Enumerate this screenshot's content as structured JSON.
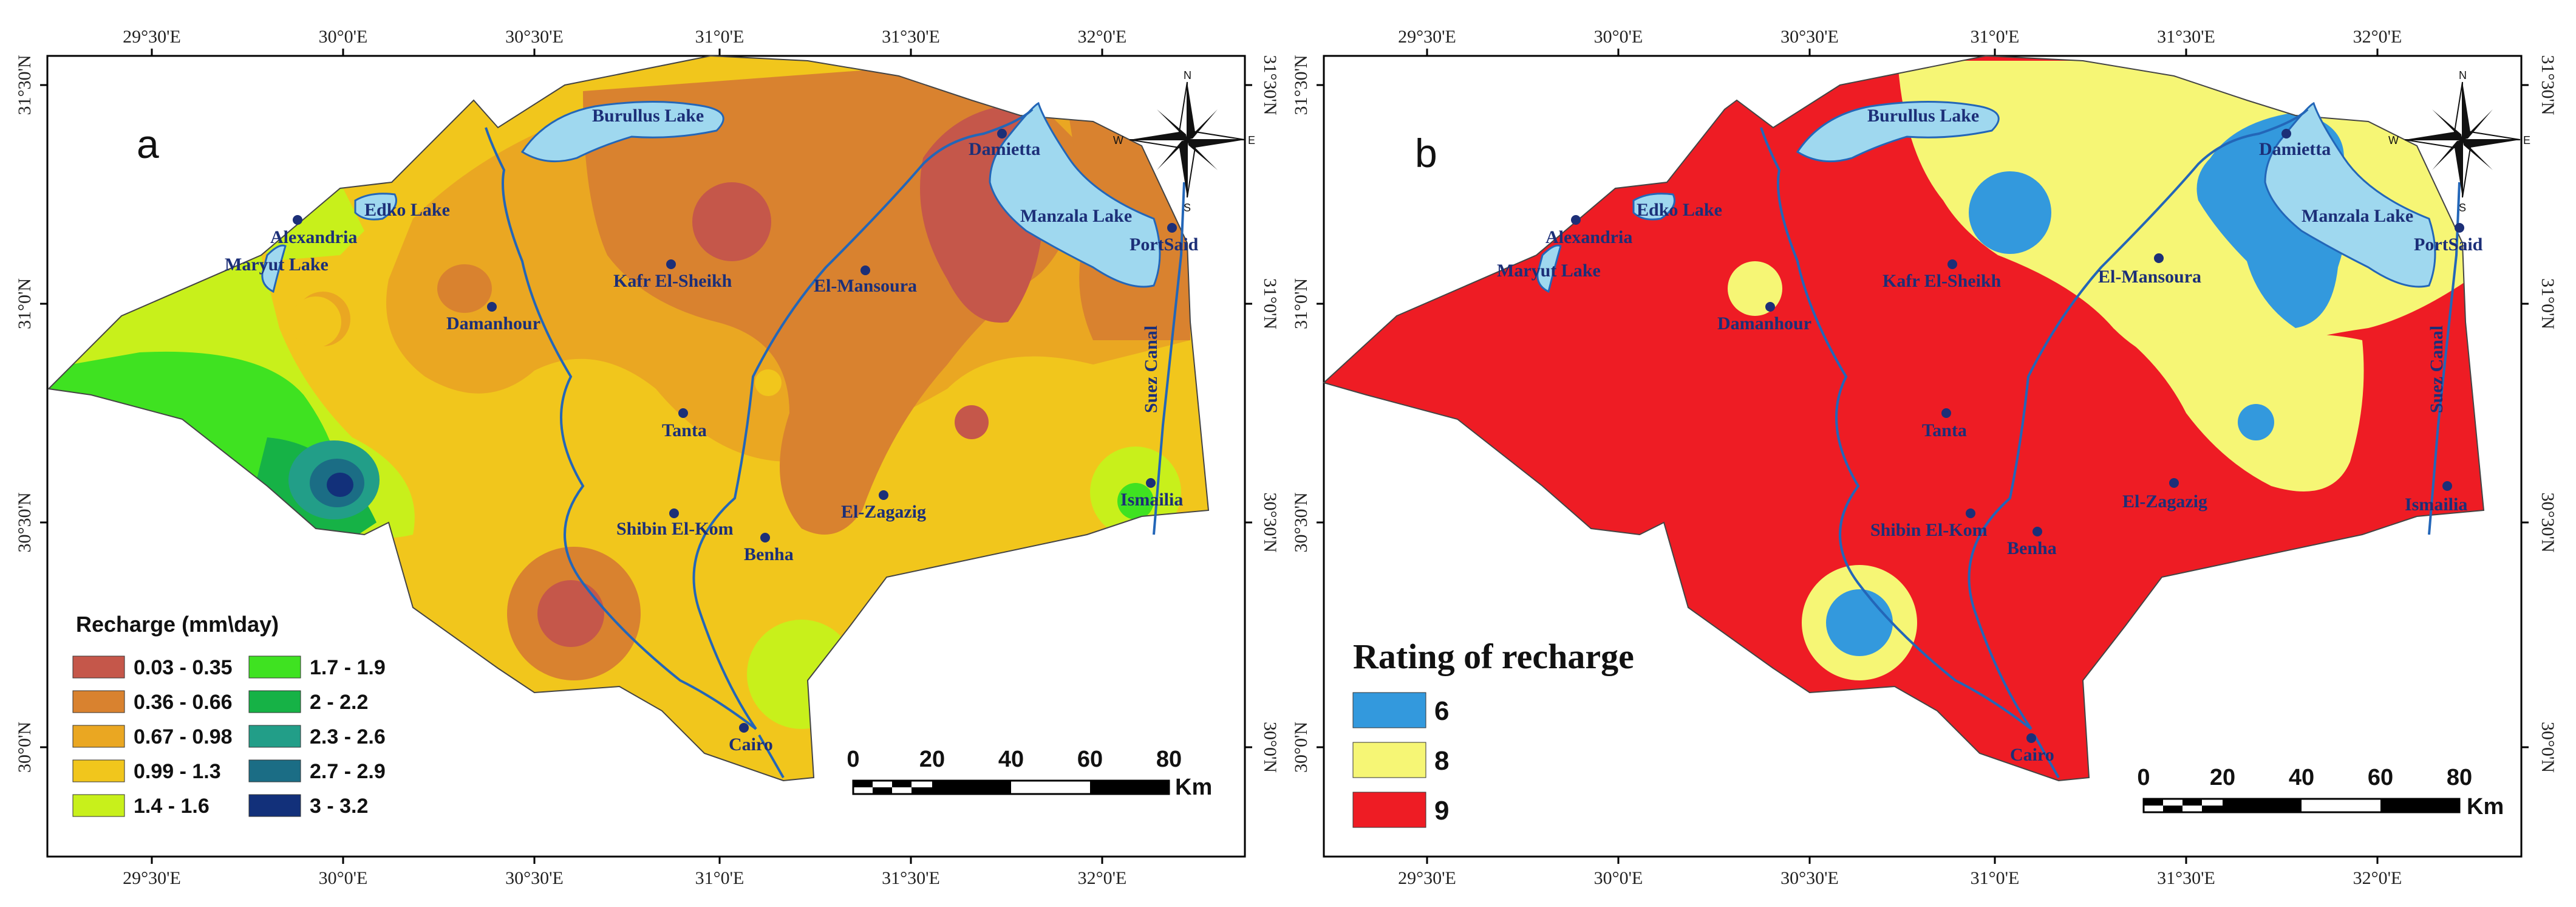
{
  "colors": {
    "water": "#9fd8ef",
    "river": "#2366b8",
    "city_dot": "#1c2f78",
    "recharge": [
      "#c5574a",
      "#d9822f",
      "#eaa722",
      "#f1c61c",
      "#c8f01b",
      "#3fe221",
      "#16b246",
      "#229e88",
      "#1b6d85",
      "#12307a"
    ],
    "rating": [
      "#3399dd",
      "#f6f675",
      "#ee1c24"
    ]
  },
  "panel_a": {
    "letter": "a",
    "top_ticks": [
      "29°30'E",
      "30°0'E",
      "30°30'E",
      "31°0'E",
      "31°30'E",
      "32°0'E"
    ],
    "bottom_ticks": [
      "29°30'E",
      "30°0'E",
      "30°30'E",
      "31°0'E",
      "31°30'E",
      "32°0'E"
    ],
    "left_ticks": [
      "31°30'N",
      "31°0'N",
      "30°30'N",
      "30°0'N"
    ],
    "right_ticks": [
      "31°30'N",
      "31°0'N",
      "30°30'N",
      "30°0'N"
    ],
    "cities": {
      "alexandria": "Alexandria",
      "maryut_lake": "Maryut Lake",
      "edko_lake": "Edko Lake",
      "burullus_lake": "Burullus Lake",
      "damietta": "Damietta",
      "manzala_lake": "Manzala Lake",
      "port_said": "PortSaid",
      "kafr_el_sheikh": "Kafr El-Sheikh",
      "el_mansoura": "El-Mansoura",
      "damanhour": "Damanhour",
      "tanta": "Tanta",
      "shibin_el_kom": "Shibin El-Kom",
      "benha": "Benha",
      "el_zagazig": "El-Zagazig",
      "ismailia": "Ismailia",
      "cairo": "Cairo",
      "suez_canal": "Suez Canal"
    },
    "legend": {
      "title": "Recharge (mm\\day)",
      "items": [
        "0.03 - 0.35",
        "0.36 - 0.66",
        "0.67 - 0.98",
        "0.99 - 1.3",
        "1.4 - 1.6",
        "1.7 - 1.9",
        "2 - 2.2",
        "2.3 - 2.6",
        "2.7 - 2.9",
        "3 - 3.2"
      ]
    },
    "scale": {
      "labels": [
        "0",
        "20",
        "40",
        "60",
        "80"
      ],
      "unit": "Km"
    },
    "compass": {
      "n": "N",
      "s": "S",
      "e": "E",
      "w": "W"
    }
  },
  "panel_b": {
    "letter": "b",
    "top_ticks": [
      "29°30'E",
      "30°0'E",
      "30°30'E",
      "31°0'E",
      "31°30'E",
      "32°0'E"
    ],
    "bottom_ticks": [
      "29°30'E",
      "30°0'E",
      "30°30'E",
      "31°0'E",
      "31°30'E",
      "32°0'E"
    ],
    "left_ticks": [
      "31°30'N",
      "31°0'N",
      "30°30'N",
      "30°0'N"
    ],
    "right_ticks": [
      "31°30'N",
      "31°0'N",
      "30°30'N",
      "30°0'N"
    ],
    "cities": {
      "alexandria": "Alexandria",
      "maryut_lake": "Maryut Lake",
      "edko_lake": "Edko Lake",
      "burullus_lake": "Burullus Lake",
      "damietta": "Damietta",
      "manzala_lake": "Manzala Lake",
      "port_said": "PortSaid",
      "kafr_el_sheikh": "Kafr El-Sheikh",
      "el_mansoura": "El-Mansoura",
      "damanhour": "Damanhour",
      "tanta": "Tanta",
      "shibin_el_kom": "Shibin El-Kom",
      "benha": "Benha",
      "el_zagazig": "El-Zagazig",
      "ismailia": "Ismailia",
      "cairo": "Cairo",
      "suez_canal": "Suez Canal"
    },
    "legend": {
      "title": "Rating of recharge",
      "items": [
        "6",
        "8",
        "9"
      ]
    },
    "scale": {
      "labels": [
        "0",
        "20",
        "40",
        "60",
        "80"
      ],
      "unit": "Km"
    },
    "compass": {
      "n": "N",
      "s": "S",
      "e": "E",
      "w": "W"
    }
  }
}
